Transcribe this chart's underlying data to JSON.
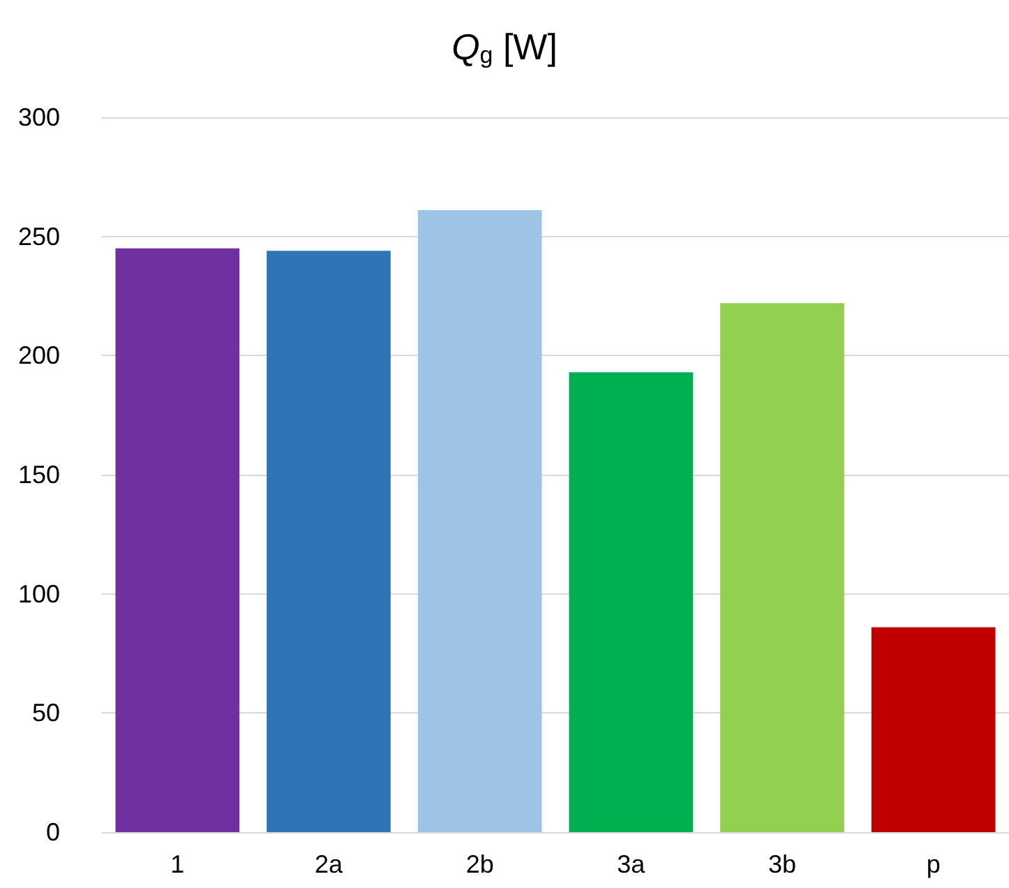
{
  "chart_data": {
    "type": "bar",
    "title": "Q$_{g}$ [W]",
    "categories": [
      "1",
      "2a",
      "2b",
      "3a",
      "3b",
      "p"
    ],
    "values": [
      245,
      244,
      261,
      193,
      222,
      86
    ],
    "colors": [
      "#7030a0",
      "#2e75b6",
      "#9dc3e6",
      "#00b050",
      "#92d050",
      "#c00000"
    ],
    "ylim": [
      0,
      300
    ],
    "yticks": [
      0,
      50,
      100,
      150,
      200,
      250,
      300
    ],
    "grid": "y"
  }
}
